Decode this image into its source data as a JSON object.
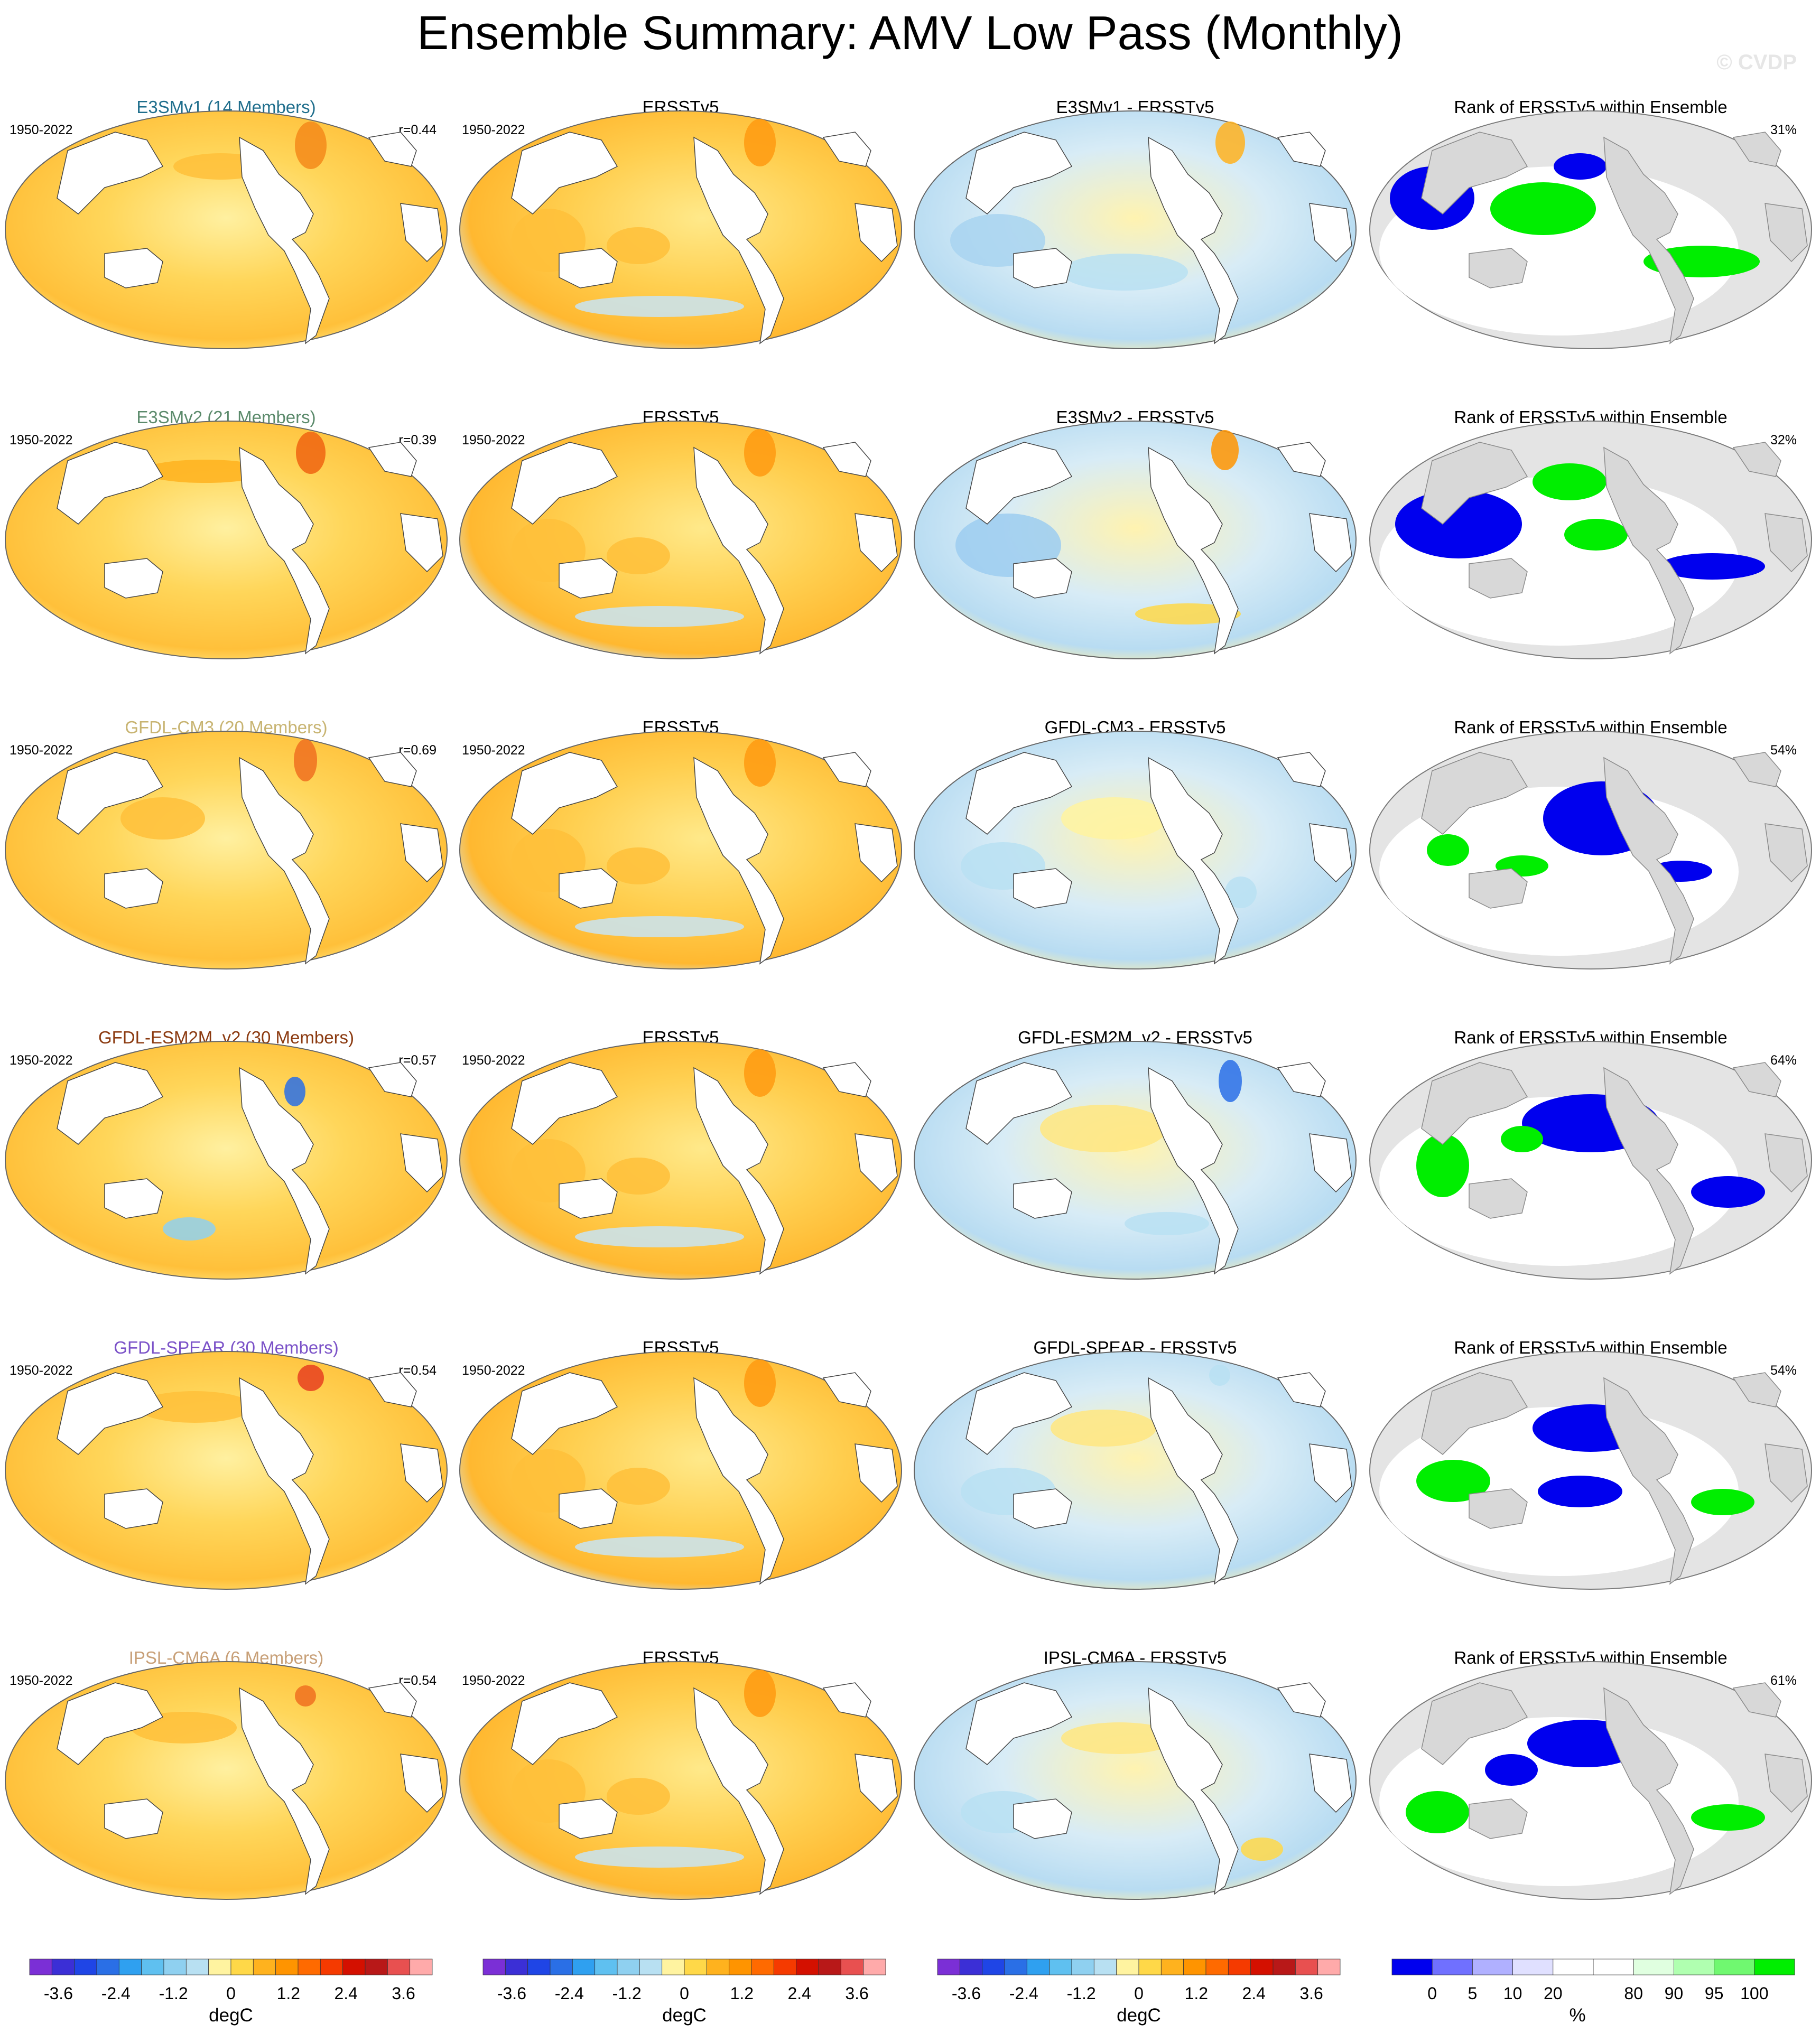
{
  "title": "Ensemble Summary: AMV Low Pass (Monthly)",
  "watermark": "© CVDP",
  "period": "1950-2022",
  "obs_name": "ERSSTv5",
  "rank_title": "Rank of ERSSTv5 within Ensemble",
  "rows": [
    {
      "model_title": "E3SMv1 (14 Members)",
      "model_color": "#1f6e8c",
      "r": "r=0.44",
      "diff_title": "E3SMv1 - ERSSTv5",
      "rank_pct": "31%"
    },
    {
      "model_title": "E3SMv2 (21 Members)",
      "model_color": "#5b8a6b",
      "r": "r=0.39",
      "diff_title": "E3SMv2 - ERSSTv5",
      "rank_pct": "32%"
    },
    {
      "model_title": "GFDL-CM3 (20 Members)",
      "model_color": "#c8b472",
      "r": "r=0.69",
      "diff_title": "GFDL-CM3 - ERSSTv5",
      "rank_pct": "54%"
    },
    {
      "model_title": "GFDL-ESM2M_v2 (30 Members)",
      "model_color": "#8b3a10",
      "r": "r=0.57",
      "diff_title": "GFDL-ESM2M_v2 - ERSSTv5",
      "rank_pct": "64%"
    },
    {
      "model_title": "GFDL-SPEAR (30 Members)",
      "model_color": "#7b52c8",
      "r": "r=0.54",
      "diff_title": "GFDL-SPEAR - ERSSTv5",
      "rank_pct": "54%"
    },
    {
      "model_title": "IPSL-CM6A (6 Members)",
      "model_color": "#c8a078",
      "r": "r=0.54",
      "diff_title": "IPSL-CM6A - ERSSTv5",
      "rank_pct": "61%"
    }
  ],
  "colorbars": {
    "sst": {
      "colors": [
        "#7b2fd6",
        "#3b2fd6",
        "#1f45e6",
        "#2a6fe6",
        "#2fa0f0",
        "#5fc0f0",
        "#8fd0f0",
        "#b8e0f2",
        "#fff3a0",
        "#ffd848",
        "#ffb21e",
        "#ff9400",
        "#ff6a00",
        "#f53a00",
        "#d41000",
        "#b81818",
        "#e85050",
        "#ffaaaa"
      ],
      "tick_labels": [
        "-3.6",
        "-2.4",
        "-1.2",
        "0",
        "1.2",
        "2.4",
        "3.6"
      ],
      "tick_values": [
        -3.6,
        -2.4,
        -1.2,
        0,
        1.2,
        2.4,
        3.6
      ],
      "range": [
        -4.2,
        4.2
      ],
      "units": "degC"
    },
    "rank": {
      "colors": [
        "#0000ee",
        "#7070ff",
        "#b0b0ff",
        "#e0e0ff",
        "#ffffff",
        "#ffffff",
        "#e0ffe0",
        "#b0ffb0",
        "#70f870",
        "#00ee00"
      ],
      "tick_labels": [
        "0",
        "5",
        "10",
        "20",
        "80",
        "90",
        "95",
        "100"
      ],
      "tick_positions_pct": [
        0,
        5,
        10,
        20,
        80,
        90,
        95,
        100
      ],
      "units": "%"
    }
  },
  "chart_data": {
    "type": "heatmap",
    "title": "Ensemble Summary: AMV Low Pass (Monthly)",
    "layout": "6 rows x 4 map panels (model ensemble mean, ERSSTv5, model minus ERSSTv5, rank of ERSSTv5 within ensemble)",
    "period": "1950-2022",
    "colorbar_units": [
      "degC",
      "degC",
      "degC",
      "%"
    ],
    "pattern_correlations": [
      {
        "model": "E3SMv1",
        "members": 14,
        "r": 0.44,
        "rank_pct": 31
      },
      {
        "model": "E3SMv2",
        "members": 21,
        "r": 0.39,
        "rank_pct": 32
      },
      {
        "model": "GFDL-CM3",
        "members": 20,
        "r": 0.69,
        "rank_pct": 54
      },
      {
        "model": "GFDL-ESM2M_v2",
        "members": 30,
        "r": 0.57,
        "rank_pct": 64
      },
      {
        "model": "GFDL-SPEAR",
        "members": 30,
        "r": 0.54,
        "rank_pct": 54
      },
      {
        "model": "IPSL-CM6A",
        "members": 6,
        "r": 0.54,
        "rank_pct": 61
      }
    ]
  }
}
